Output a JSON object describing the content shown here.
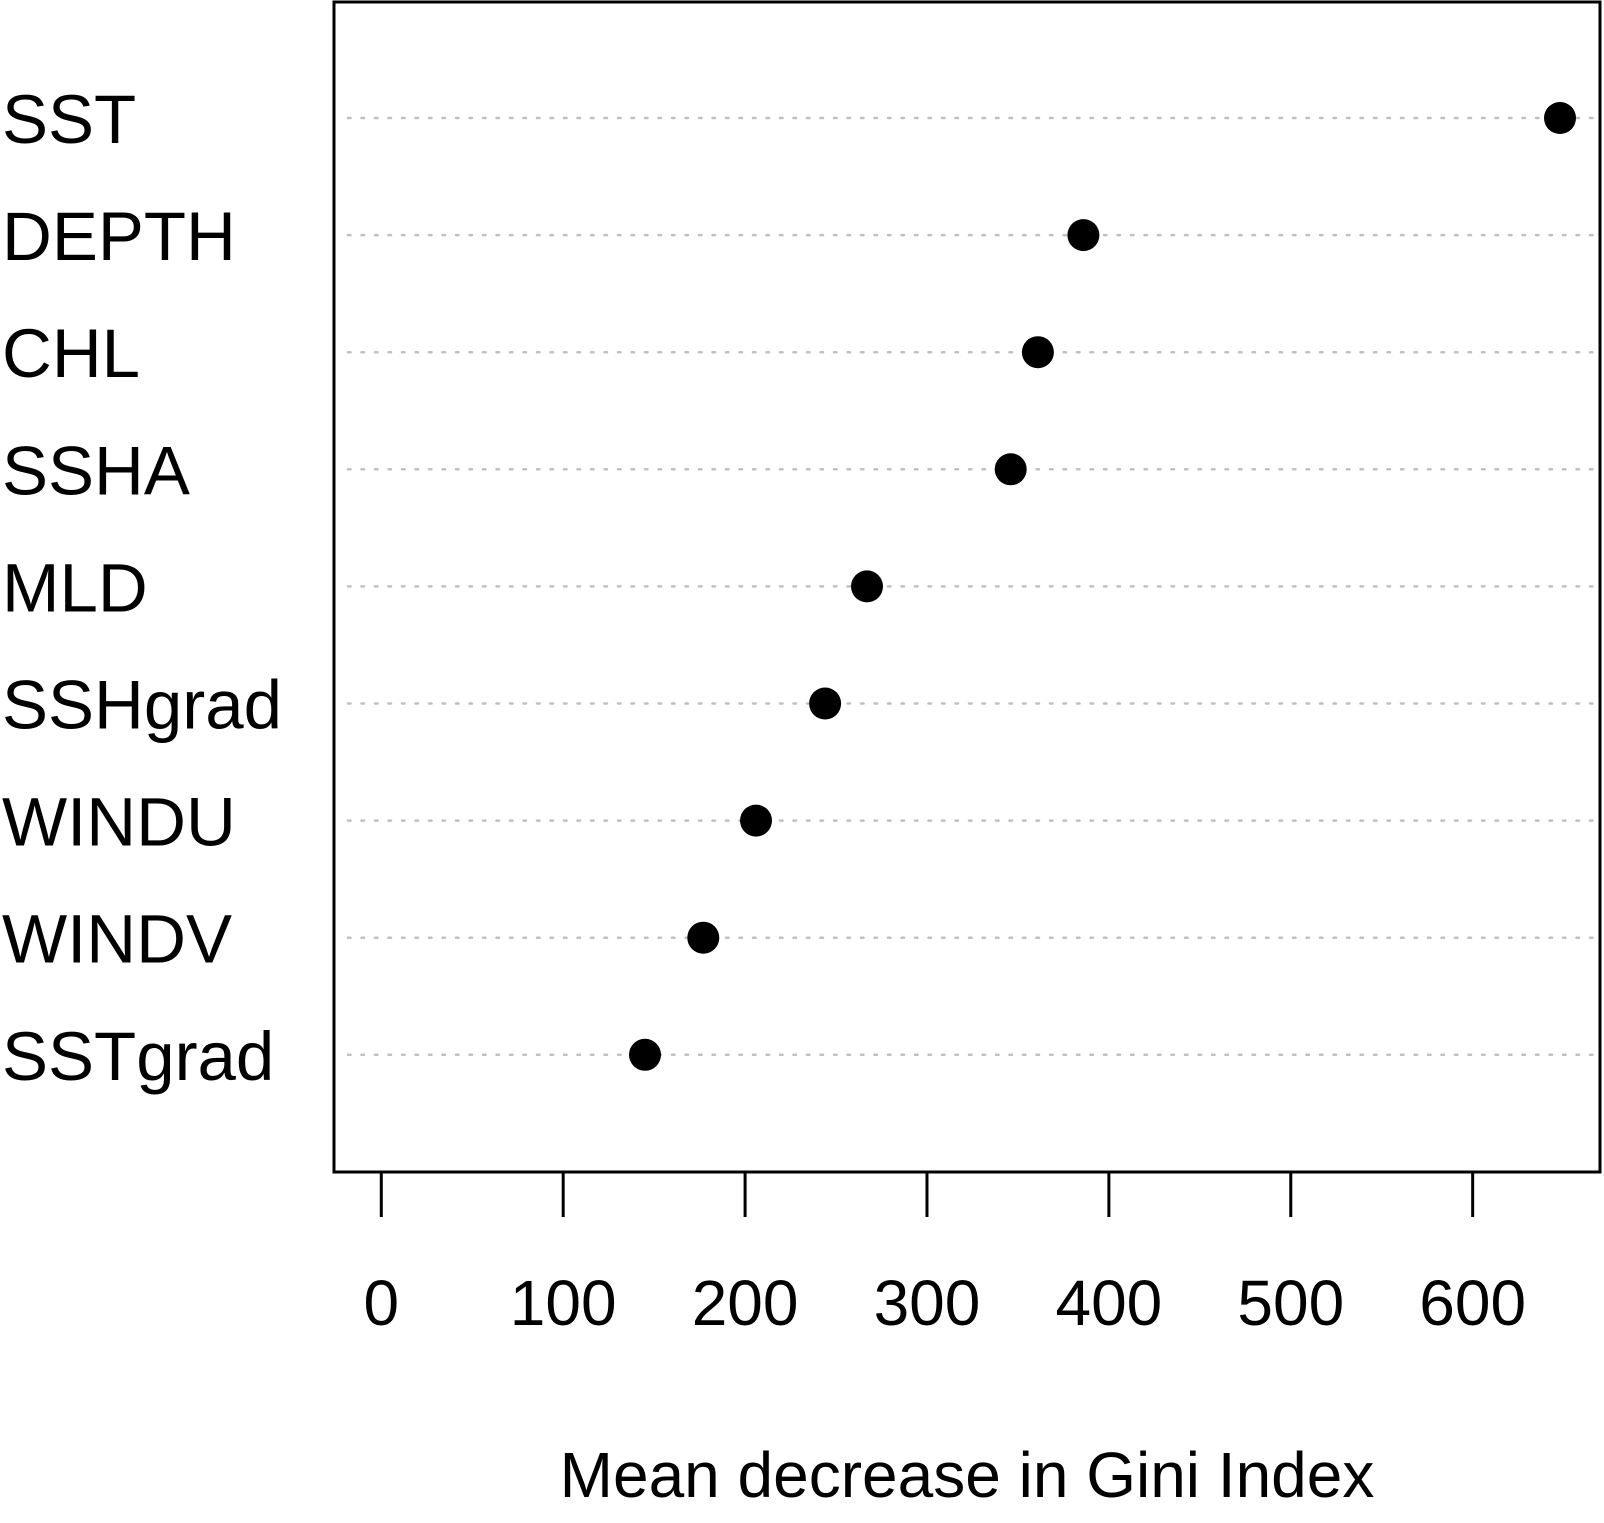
{
  "chart_data": {
    "type": "scatter",
    "subtype": "dotchart",
    "title": "",
    "xlabel": "Mean decrease in Gini Index",
    "ylabel": "",
    "categories": [
      "SST",
      "DEPTH",
      "CHL",
      "SSHA",
      "MLD",
      "SSHgrad",
      "WINDU",
      "WINDV",
      "SSTgrad"
    ],
    "values": [
      648,
      386,
      361,
      346,
      267,
      244,
      206,
      177,
      145
    ],
    "xlim": [
      -26,
      670
    ],
    "xticks": [
      "0",
      "100",
      "200",
      "300",
      "400",
      "500",
      "600"
    ],
    "grid": "dotted horizontal guide lines",
    "legend": "none",
    "colors": {
      "points": "#000000",
      "guides": "#c0c0c0",
      "frame": "#000000"
    }
  }
}
